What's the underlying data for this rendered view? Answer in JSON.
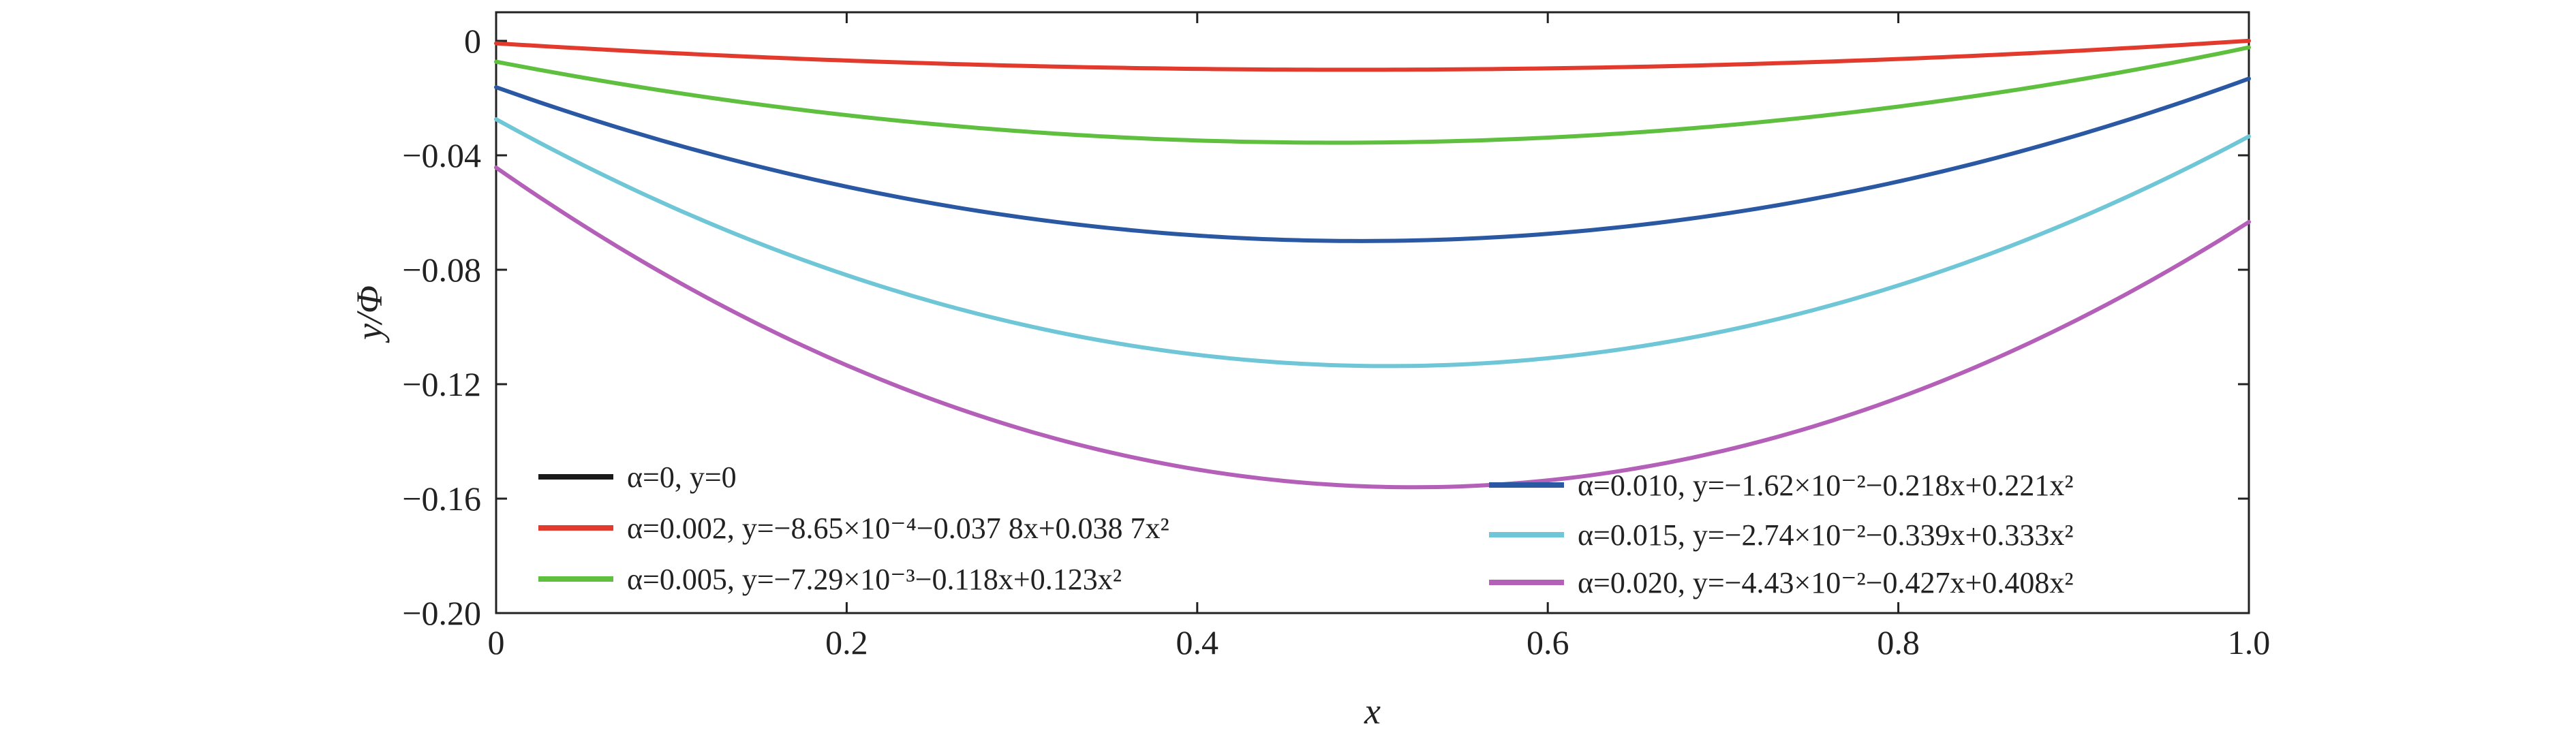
{
  "chart_data": {
    "type": "line",
    "xlabel": "x",
    "ylabel": "y/Φ",
    "xlim": [
      0,
      1.0
    ],
    "ylim": [
      -0.2,
      0.01
    ],
    "xticks": [
      0,
      0.2,
      0.4,
      0.6,
      0.8,
      1.0
    ],
    "xtick_labels": [
      "0",
      "0.2",
      "0.4",
      "0.6",
      "0.8",
      "1.0"
    ],
    "yticks": [
      0,
      -0.04,
      -0.08,
      -0.12,
      -0.16,
      -0.2
    ],
    "ytick_labels": [
      "0",
      "−0.04",
      "−0.08",
      "−0.12",
      "−0.16",
      "−0.20"
    ],
    "grid": false,
    "legend_placement": "bottom",
    "series": [
      {
        "name": "α=0, y=0",
        "color": "#1a1a1a",
        "coeffs": [
          0,
          0,
          0
        ],
        "draw_line": false
      },
      {
        "name": "α=0.002, y=−8.65×10⁻⁴−0.037 8x+0.038 7x²",
        "color": "#e23b2e",
        "coeffs": [
          -0.000865,
          -0.0378,
          0.0387
        ]
      },
      {
        "name": "α=0.005, y=−7.29×10⁻³−0.118x+0.123x²",
        "color": "#5fbf3f",
        "coeffs": [
          -0.00729,
          -0.118,
          0.123
        ]
      },
      {
        "name": "α=0.010, y=−1.62×10⁻²−0.218x+0.221x²",
        "color": "#2a58a3",
        "coeffs": [
          -0.0162,
          -0.218,
          0.221
        ]
      },
      {
        "name": "α=0.015, y=−2.74×10⁻²−0.339x+0.333x²",
        "color": "#6ec6d6",
        "coeffs": [
          -0.0274,
          -0.339,
          0.333
        ]
      },
      {
        "name": "α=0.020, y=−4.43×10⁻²−0.427x+0.408x²",
        "color": "#b560b8",
        "coeffs": [
          -0.0443,
          -0.427,
          0.408
        ]
      }
    ]
  }
}
